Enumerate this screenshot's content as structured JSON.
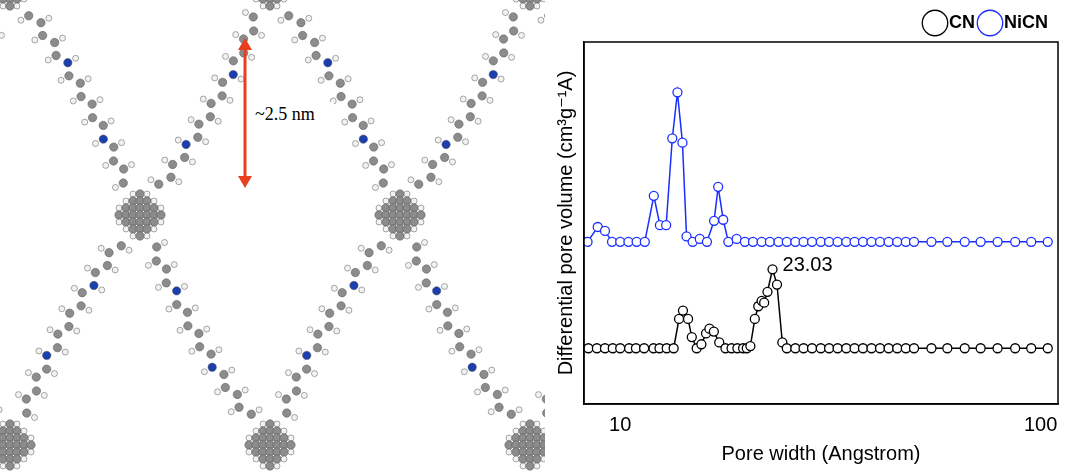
{
  "structure": {
    "annotation": "~2.5 nm"
  },
  "chart_data": {
    "type": "line",
    "x_label": "Pore width (Angstrom)",
    "y_label": "Differential pore volume (cm³g⁻¹A)",
    "log": "x",
    "grid": false,
    "legend": "upper right",
    "tick_labels": "x",
    "xlim": [
      8.2,
      110
    ],
    "xticks": [
      10,
      100
    ],
    "ylim": [
      0,
      1
    ],
    "series": [
      {
        "name": "CN",
        "color": "#000000",
        "marker": "circle",
        "line_style": "solid",
        "x": [
          8.4,
          8.8,
          9.2,
          9.6,
          10.0,
          10.5,
          10.9,
          11.4,
          12.0,
          12.4,
          12.9,
          13.4,
          13.8,
          14.1,
          14.5,
          14.8,
          15.2,
          15.6,
          16.0,
          16.3,
          16.7,
          17.2,
          17.8,
          18.4,
          19.0,
          19.6,
          20.0,
          20.4,
          20.9,
          21.3,
          21.7,
          22.0,
          22.4,
          23.03,
          23.6,
          24.3,
          24.9,
          26.1,
          27.3,
          28.6,
          30.0,
          31.4,
          32.9,
          34.5,
          36.1,
          37.8,
          39.6,
          41.5,
          43.5,
          45.6,
          47.8,
          50.0,
          55.0,
          60.0,
          66.0,
          72.0,
          79.0,
          87.0,
          95.0,
          104.0
        ],
        "values": [
          0.154,
          0.154,
          0.154,
          0.154,
          0.154,
          0.154,
          0.154,
          0.154,
          0.154,
          0.154,
          0.154,
          0.154,
          0.235,
          0.258,
          0.235,
          0.185,
          0.154,
          0.165,
          0.195,
          0.208,
          0.2,
          0.17,
          0.154,
          0.154,
          0.154,
          0.154,
          0.154,
          0.16,
          0.235,
          0.27,
          0.285,
          0.28,
          0.31,
          0.372,
          0.33,
          0.17,
          0.154,
          0.154,
          0.154,
          0.154,
          0.154,
          0.154,
          0.154,
          0.154,
          0.154,
          0.154,
          0.154,
          0.154,
          0.154,
          0.154,
          0.154,
          0.154,
          0.154,
          0.154,
          0.154,
          0.154,
          0.154,
          0.154,
          0.154,
          0.154
        ]
      },
      {
        "name": "NiCN",
        "color": "#1a2fff",
        "marker": "circle",
        "line_style": "solid",
        "x": [
          8.36,
          8.84,
          9.2,
          9.56,
          10.0,
          10.46,
          10.94,
          11.44,
          12.02,
          12.43,
          12.86,
          13.3,
          13.68,
          14.06,
          14.38,
          14.87,
          15.46,
          16.08,
          16.72,
          17.1,
          17.58,
          18.08,
          18.92,
          19.8,
          20.7,
          21.7,
          22.7,
          23.8,
          24.9,
          26.1,
          27.3,
          28.6,
          30.0,
          31.4,
          32.9,
          34.5,
          36.1,
          37.8,
          39.6,
          41.5,
          43.5,
          45.6,
          47.8,
          50.0,
          55.0,
          60.0,
          66.0,
          72.0,
          79.0,
          87.0,
          95.0,
          104.0
        ],
        "values": [
          0.448,
          0.489,
          0.478,
          0.448,
          0.448,
          0.448,
          0.448,
          0.448,
          0.575,
          0.494,
          0.494,
          0.734,
          0.861,
          0.722,
          0.463,
          0.448,
          0.456,
          0.448,
          0.506,
          0.6,
          0.509,
          0.448,
          0.456,
          0.448,
          0.448,
          0.448,
          0.448,
          0.448,
          0.448,
          0.448,
          0.448,
          0.448,
          0.448,
          0.448,
          0.448,
          0.448,
          0.448,
          0.448,
          0.448,
          0.448,
          0.448,
          0.448,
          0.448,
          0.448,
          0.448,
          0.448,
          0.448,
          0.448,
          0.448,
          0.448,
          0.448,
          0.448
        ]
      }
    ],
    "annotations": [
      {
        "text": "23.03",
        "x": 23.03,
        "y": 0.372
      }
    ]
  }
}
